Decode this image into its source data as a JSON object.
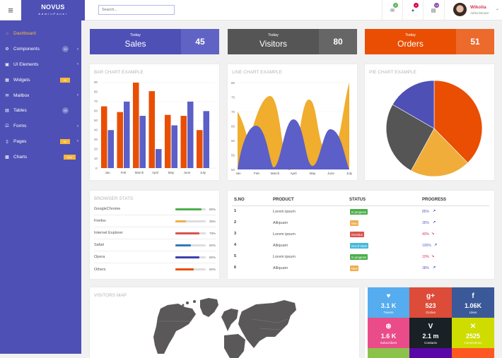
{
  "header": {
    "brand_title": "NOVUS",
    "brand_subtitle": "AdminPanel",
    "search_placeholder": "Search...",
    "menu_icon": "≡",
    "notifications": [
      {
        "name": "mail",
        "icon": "✉",
        "count": "8",
        "color": "#5cb85c"
      },
      {
        "name": "bell",
        "icon": "🔔",
        "count": "8",
        "color": "#d9003c"
      },
      {
        "name": "tasks",
        "icon": "▤",
        "count": "15",
        "color": "#8e44ad"
      }
    ],
    "user": {
      "name": "Wikolia",
      "role": "Administrator",
      "chevron": "⌄"
    }
  },
  "sidebar": {
    "items": [
      {
        "label": "Dashboard",
        "icon": "⌂",
        "active": true
      },
      {
        "label": "Components",
        "icon": "⚙",
        "badge": "12",
        "badge_type": "round",
        "chevron": "‹"
      },
      {
        "label": "UI Elements",
        "icon": "▣",
        "chevron": "‹"
      },
      {
        "label": "Widgets",
        "icon": "▦",
        "badge": "08",
        "badge_type": "box"
      },
      {
        "label": "Mailbox",
        "icon": "✉",
        "chevron": "‹"
      },
      {
        "label": "Tables",
        "icon": "▤",
        "badge": "05",
        "badge_type": "round"
      },
      {
        "label": "Forms",
        "icon": "☑",
        "chevron": "‹"
      },
      {
        "label": "Pages",
        "icon": "▯",
        "badge": "02",
        "badge_type": "box",
        "chevron": "‹"
      },
      {
        "label": "Charts",
        "icon": "▩",
        "badge": "new",
        "badge_type": "wide"
      }
    ]
  },
  "stats": [
    {
      "small": "Today",
      "label": "Sales",
      "value": "45",
      "bg": "#4e50b5",
      "num_bg": "#6163c4"
    },
    {
      "small": "Today",
      "label": "Visitors",
      "value": "80",
      "bg": "#555555",
      "num_bg": "#666666"
    },
    {
      "small": "Today",
      "label": "Orders",
      "value": "51",
      "bg": "#e94e02",
      "num_bg": "#ec6a2c"
    }
  ],
  "chart_data": [
    {
      "type": "bar",
      "title": "BAR CHART EXAMPLE",
      "categories": [
        "Jan",
        "Feb",
        "March",
        "April",
        "May",
        "June",
        "July"
      ],
      "series": [
        {
          "name": "series1",
          "color": "#e94e02",
          "values": [
            65,
            59,
            90,
            81,
            56,
            55,
            40
          ]
        },
        {
          "name": "series2",
          "color": "#5b5fc7",
          "values": [
            40,
            70,
            55,
            20,
            45,
            70,
            60
          ]
        }
      ],
      "yticks": [
        0,
        10,
        20,
        30,
        40,
        50,
        60,
        70,
        80,
        90
      ],
      "ylim": [
        0,
        90
      ]
    },
    {
      "type": "area",
      "title": "LINE CHART EXAMPLE",
      "categories": [
        "Jan",
        "Feb",
        "March",
        "April",
        "May",
        "June",
        "July"
      ],
      "series": [
        {
          "name": "series1",
          "color": "#f0ad2e",
          "values": [
            70,
            60,
            72,
            58,
            75,
            55,
            80
          ]
        },
        {
          "name": "series2",
          "color": "#5b5fc7",
          "values": [
            50,
            65,
            51,
            67,
            52,
            64,
            50
          ]
        }
      ],
      "yticks": [
        50,
        55,
        60,
        65,
        70,
        75,
        80
      ],
      "ylim": [
        50,
        80
      ]
    },
    {
      "type": "pie",
      "title": "PIE CHART EXAMPLE",
      "slices": [
        {
          "label": "orange",
          "value": 38,
          "color": "#e94e02"
        },
        {
          "label": "yellow",
          "value": 21,
          "color": "#f0ad3a"
        },
        {
          "label": "gray",
          "value": 26,
          "color": "#555555"
        },
        {
          "label": "blue",
          "value": 15,
          "color": "#4e50b5"
        }
      ]
    }
  ],
  "browser_stats": {
    "title": "BROWSER STATS",
    "rows": [
      {
        "name": "GoogleChrome",
        "pct": "85%",
        "value": 85,
        "color": "#4cae4c"
      },
      {
        "name": "Firefox",
        "pct": "35%",
        "value": 35,
        "color": "#f0ad4e"
      },
      {
        "name": "Internet Explorer",
        "pct": "78%",
        "value": 78,
        "color": "#d9534f"
      },
      {
        "name": "Safari",
        "pct": "50%",
        "value": 50,
        "color": "#337ab7"
      },
      {
        "name": "Opera",
        "pct": "80%",
        "value": 80,
        "color": "#3f3fb0"
      },
      {
        "name": "Others",
        "pct": "60%",
        "value": 60,
        "color": "#e94e02"
      }
    ]
  },
  "table": {
    "headers": [
      "S.NO",
      "PRODUCT",
      "STATUS",
      "PROGRESS"
    ],
    "rows": [
      {
        "sno": "1",
        "product": "Lorem ipsum",
        "status": "In progress",
        "status_color": "#4cae4c",
        "progress": "85%",
        "trend": "↗",
        "prog_color": "#5b5fc7"
      },
      {
        "sno": "2",
        "product": "Alliquam",
        "status": "New",
        "status_color": "#f0ad4e",
        "progress": "35%",
        "trend": "↗",
        "prog_color": "#5b5fc7"
      },
      {
        "sno": "3",
        "product": "Lorem ipsum",
        "status": "Overdue",
        "status_color": "#d9534f",
        "progress": "40%",
        "trend": "↘",
        "prog_color": "#d9345f"
      },
      {
        "sno": "4",
        "product": "Alliquam",
        "status": "Out of stock",
        "status_color": "#46b8da",
        "progress": "100%",
        "trend": "↗",
        "prog_color": "#5b5fc7"
      },
      {
        "sno": "5",
        "product": "Lorem ipsum",
        "status": "In progress",
        "status_color": "#4cae4c",
        "progress": "10%",
        "trend": "↘",
        "prog_color": "#d9345f"
      },
      {
        "sno": "6",
        "product": "Alliquam",
        "status": "New",
        "status_color": "#f0ad4e",
        "progress": "38%",
        "trend": "↗",
        "prog_color": "#5b5fc7"
      }
    ]
  },
  "visitors_map": {
    "title": "VISITORS MAP"
  },
  "social": [
    {
      "name": "twitter",
      "icon": "🐦",
      "value": "3.1 K",
      "label": "Tweets",
      "bg": "#55acee"
    },
    {
      "name": "google-plus",
      "icon": "g+",
      "value": "523",
      "label": "Circles",
      "bg": "#dd4b39"
    },
    {
      "name": "facebook",
      "icon": "f",
      "value": "1.06K",
      "label": "Likes",
      "bg": "#3b5998"
    },
    {
      "name": "dribbble",
      "icon": "⚽",
      "value": "1.6 K",
      "label": "Subscribers",
      "bg": "#ea4c89"
    },
    {
      "name": "vimeo",
      "icon": "V",
      "value": "2.1 m",
      "label": "Contacts",
      "bg": "#1a2126"
    },
    {
      "name": "xing",
      "icon": "✕",
      "value": "2525",
      "label": "Connections",
      "bg": "#cfdc00"
    },
    {
      "name": "row3-a",
      "icon": "",
      "value": "",
      "label": "",
      "bg": "#8bc34a"
    },
    {
      "name": "row3-b",
      "icon": "",
      "value": "",
      "label": "",
      "bg": "#5a07a8"
    },
    {
      "name": "row3-c",
      "icon": "",
      "value": "",
      "label": "",
      "bg": "#ff5722"
    }
  ]
}
